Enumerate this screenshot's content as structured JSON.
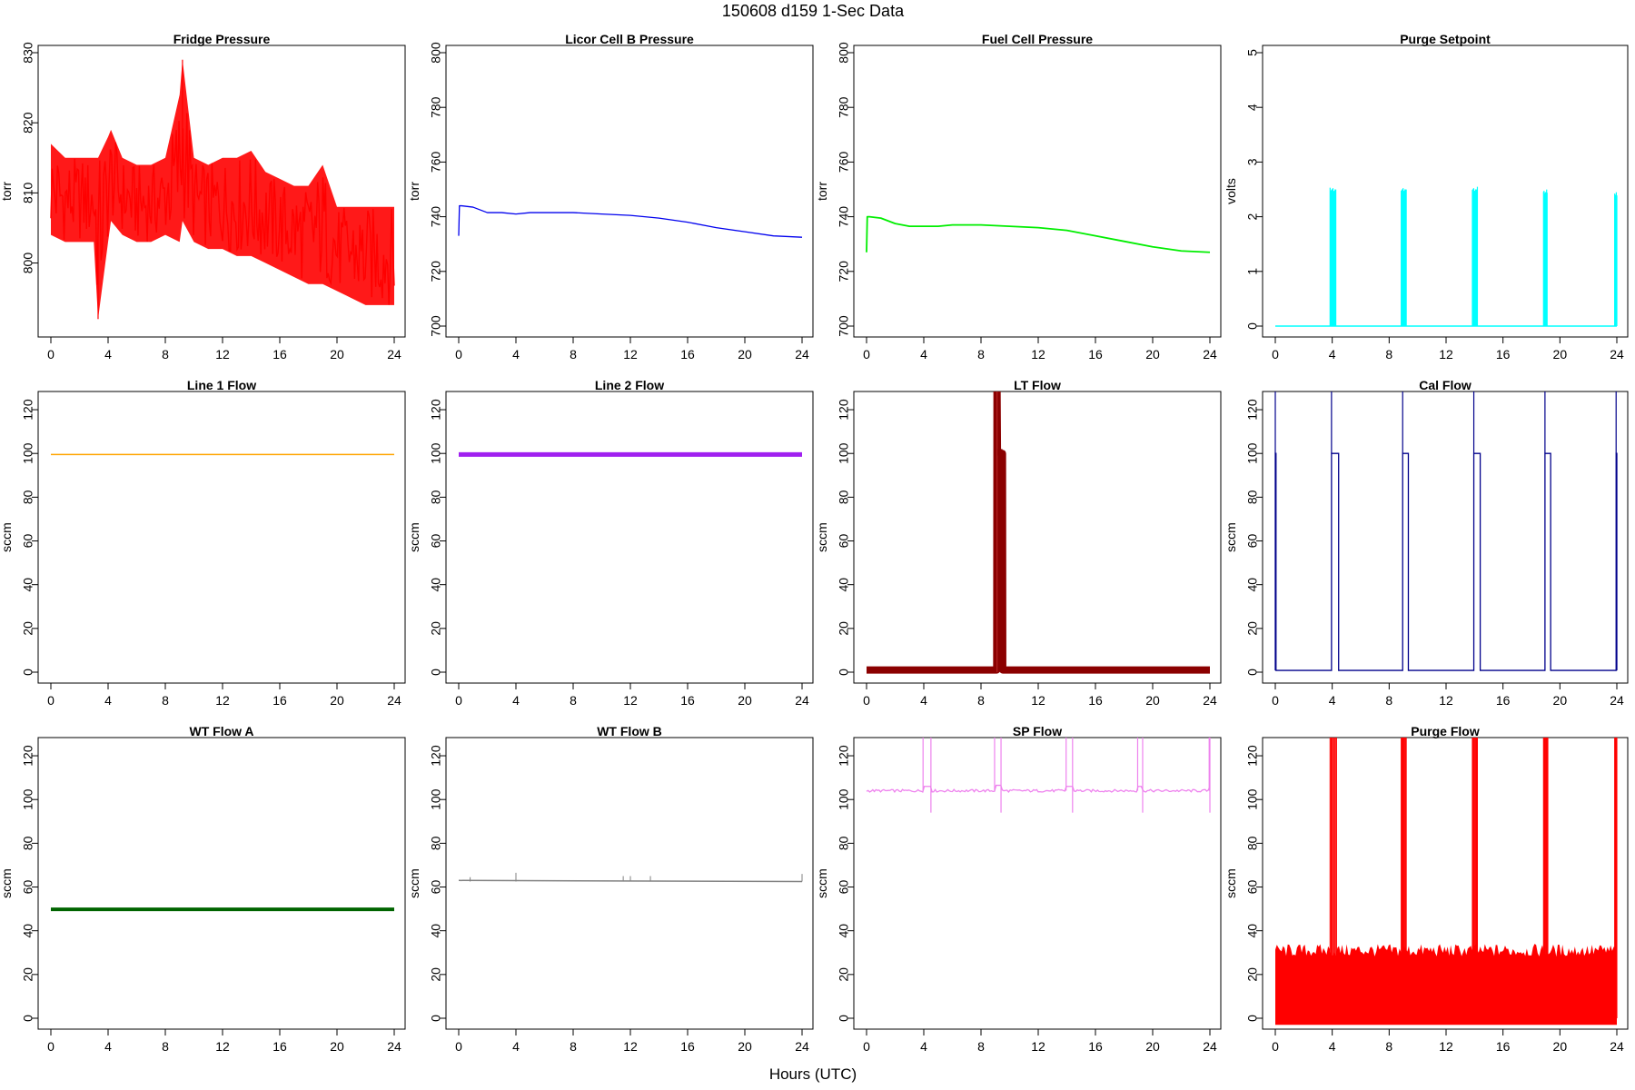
{
  "figure": {
    "title": "150608   d159   1-Sec Data",
    "xlabel": "Hours (UTC)"
  },
  "chart_data": [
    {
      "type": "line",
      "title": "Fridge Pressure",
      "ylabel": "torr",
      "color": "#ff0000",
      "xlim": [
        0,
        24
      ],
      "ylim": [
        791,
        830
      ],
      "xticks": [
        0,
        4,
        8,
        12,
        16,
        20,
        24
      ],
      "yticks": [
        800,
        810,
        820,
        830
      ],
      "series": [
        {
          "x": [
            0,
            1,
            2,
            3,
            3.3,
            4,
            4.2,
            5,
            6,
            7,
            8,
            9,
            9.2,
            10,
            11,
            12,
            13,
            14,
            15,
            16,
            17,
            18,
            19,
            20,
            21,
            22,
            23,
            24
          ],
          "low": [
            804,
            803,
            803,
            803,
            792,
            803,
            806,
            804,
            803,
            803,
            804,
            803,
            806,
            803,
            802,
            802,
            801,
            801,
            800,
            799,
            798,
            797,
            797,
            796,
            795,
            794,
            794,
            794
          ],
          "high": [
            817,
            815,
            815,
            815,
            815,
            818,
            819,
            815,
            814,
            814,
            815,
            824,
            829,
            815,
            814,
            815,
            815,
            816,
            813,
            812,
            811,
            811,
            814,
            808,
            808,
            808,
            808,
            808
          ]
        }
      ]
    },
    {
      "type": "line",
      "title": "Licor Cell B Pressure",
      "ylabel": "torr",
      "color": "#0000ee",
      "xlim": [
        0,
        24
      ],
      "ylim": [
        700,
        800
      ],
      "xticks": [
        0,
        4,
        8,
        12,
        16,
        20,
        24
      ],
      "yticks": [
        700,
        720,
        740,
        760,
        780,
        800
      ],
      "series": [
        {
          "x": [
            0,
            0.05,
            0.2,
            1,
            2,
            3,
            4,
            5,
            6,
            8,
            10,
            12,
            14,
            16,
            18,
            20,
            22,
            24
          ],
          "y": [
            733,
            744,
            744,
            743.5,
            741.5,
            741.5,
            741,
            741.5,
            741.5,
            741.5,
            741,
            740.5,
            739.5,
            738,
            736,
            734.5,
            733,
            732.5
          ]
        }
      ]
    },
    {
      "type": "line",
      "title": "Fuel Cell Pressure",
      "ylabel": "torr",
      "color": "#00ee00",
      "xlim": [
        0,
        24
      ],
      "ylim": [
        700,
        800
      ],
      "xticks": [
        0,
        4,
        8,
        12,
        16,
        20,
        24
      ],
      "yticks": [
        700,
        720,
        740,
        760,
        780,
        800
      ],
      "series": [
        {
          "x": [
            0,
            0.05,
            0.2,
            1,
            2,
            3,
            4,
            5,
            6,
            8,
            10,
            12,
            14,
            16,
            18,
            20,
            22,
            24
          ],
          "y": [
            727,
            740,
            740,
            739.5,
            737.5,
            736.5,
            736.5,
            736.5,
            737,
            737,
            736.5,
            736,
            735,
            733,
            731,
            729,
            727.5,
            727
          ]
        }
      ]
    },
    {
      "type": "line",
      "title": "Purge Setpoint",
      "ylabel": "volts",
      "color": "#00ffff",
      "xlim": [
        0,
        24
      ],
      "ylim": [
        0,
        5
      ],
      "xticks": [
        0,
        4,
        8,
        12,
        16,
        20,
        24
      ],
      "yticks": [
        0,
        1,
        2,
        3,
        4,
        5
      ],
      "baseline": 0,
      "spikes": [
        {
          "start": 3.85,
          "end": 4.25,
          "value": 2.55
        },
        {
          "start": 8.85,
          "end": 9.2,
          "value": 2.55
        },
        {
          "start": 13.85,
          "end": 14.2,
          "value": 2.55
        },
        {
          "start": 18.85,
          "end": 19.1,
          "value": 2.5
        },
        {
          "start": 23.85,
          "end": 24.0,
          "value": 2.45
        }
      ]
    },
    {
      "type": "line",
      "title": "Line 1 Flow",
      "ylabel": "sccm",
      "color": "#ffa500",
      "xlim": [
        0,
        24
      ],
      "ylim": [
        0,
        125
      ],
      "xticks": [
        0,
        4,
        8,
        12,
        16,
        20,
        24
      ],
      "yticks": [
        0,
        20,
        40,
        60,
        80,
        100,
        120
      ],
      "series": [
        {
          "x": [
            0,
            24
          ],
          "y": [
            99.5,
            99.5
          ]
        }
      ]
    },
    {
      "type": "line",
      "title": "Line 2 Flow",
      "ylabel": "sccm",
      "color": "#a020f0",
      "xlim": [
        0,
        24
      ],
      "ylim": [
        0,
        125
      ],
      "xticks": [
        0,
        4,
        8,
        12,
        16,
        20,
        24
      ],
      "yticks": [
        0,
        20,
        40,
        60,
        80,
        100,
        120
      ],
      "series": [
        {
          "x": [
            0,
            24
          ],
          "y": [
            99.5,
            99.5
          ]
        }
      ]
    },
    {
      "type": "line",
      "title": "LT Flow",
      "ylabel": "sccm",
      "color": "#8b0000",
      "xlim": [
        0,
        24
      ],
      "ylim": [
        0,
        125
      ],
      "xticks": [
        0,
        4,
        8,
        12,
        16,
        20,
        24
      ],
      "yticks": [
        0,
        20,
        40,
        60,
        80,
        100,
        120
      ],
      "series": [
        {
          "x": [
            0,
            9.1,
            9.12,
            9.15,
            9.5,
            9.52,
            24
          ],
          "y": [
            1,
            1,
            130,
            100,
            100,
            1,
            1
          ]
        }
      ]
    },
    {
      "type": "line",
      "title": "Cal Flow",
      "ylabel": "sccm",
      "color": "#00008b",
      "xlim": [
        0,
        24
      ],
      "ylim": [
        0,
        125
      ],
      "xticks": [
        0,
        4,
        8,
        12,
        16,
        20,
        24
      ],
      "yticks": [
        0,
        20,
        40,
        60,
        80,
        100,
        120
      ],
      "baseline": 0.8,
      "pulses": [
        {
          "start": 0.0,
          "end": 0.05,
          "value": 100
        },
        {
          "start": 3.95,
          "end": 4.45,
          "value": 100
        },
        {
          "start": 8.95,
          "end": 9.35,
          "value": 100
        },
        {
          "start": 13.95,
          "end": 14.4,
          "value": 100
        },
        {
          "start": 18.95,
          "end": 19.35,
          "value": 100
        },
        {
          "start": 23.95,
          "end": 24.0,
          "value": 100
        }
      ]
    },
    {
      "type": "line",
      "title": "WT Flow A",
      "ylabel": "sccm",
      "color": "#006400",
      "xlim": [
        0,
        24
      ],
      "ylim": [
        0,
        125
      ],
      "xticks": [
        0,
        4,
        8,
        12,
        16,
        20,
        24
      ],
      "yticks": [
        0,
        20,
        40,
        60,
        80,
        100,
        120
      ],
      "series": [
        {
          "x": [
            0,
            24
          ],
          "y": [
            49.8,
            49.8
          ]
        }
      ]
    },
    {
      "type": "line",
      "title": "WT Flow B",
      "ylabel": "sccm",
      "color": "#808080",
      "xlim": [
        0,
        24
      ],
      "ylim": [
        0,
        125
      ],
      "xticks": [
        0,
        4,
        8,
        12,
        16,
        20,
        24
      ],
      "yticks": [
        0,
        20,
        40,
        60,
        80,
        100,
        120
      ],
      "series": [
        {
          "x": [
            0,
            24
          ],
          "y": [
            63,
            62.5
          ]
        }
      ],
      "spikes": [
        {
          "x": 0.8,
          "value": 64.5
        },
        {
          "x": 4.0,
          "value": 66.5
        },
        {
          "x": 11.5,
          "value": 65
        },
        {
          "x": 12.0,
          "value": 65
        },
        {
          "x": 13.4,
          "value": 65
        },
        {
          "x": 24.0,
          "value": 66
        }
      ]
    },
    {
      "type": "line",
      "title": "SP Flow",
      "ylabel": "sccm",
      "color": "#ee82ee",
      "xlim": [
        0,
        24
      ],
      "ylim": [
        0,
        125
      ],
      "xticks": [
        0,
        4,
        8,
        12,
        16,
        20,
        24
      ],
      "yticks": [
        0,
        20,
        40,
        60,
        80,
        100,
        120
      ],
      "baseline": 104,
      "events": [
        {
          "start": 3.95,
          "end": 4.5,
          "value": 106
        },
        {
          "start": 8.95,
          "end": 9.4,
          "value": 106.5
        },
        {
          "start": 13.95,
          "end": 14.4,
          "value": 106
        },
        {
          "start": 18.95,
          "end": 19.3,
          "value": 106
        },
        {
          "start": 23.95,
          "end": 24.0,
          "value": 106
        }
      ]
    },
    {
      "type": "line",
      "title": "Purge Flow",
      "ylabel": "sccm",
      "color": "#ff0000",
      "xlim": [
        0,
        24
      ],
      "ylim": [
        0,
        125
      ],
      "xticks": [
        0,
        4,
        8,
        12,
        16,
        20,
        24
      ],
      "yticks": [
        0,
        20,
        40,
        60,
        80,
        100,
        120
      ],
      "bands": [
        {
          "start": 0.0,
          "end": 24.0,
          "low": -3,
          "high": 31
        }
      ],
      "spikes": [
        {
          "start": 3.85,
          "end": 4.3,
          "value": 130
        },
        {
          "start": 8.85,
          "end": 9.2,
          "value": 130
        },
        {
          "start": 13.85,
          "end": 14.2,
          "value": 130
        },
        {
          "start": 18.85,
          "end": 19.15,
          "value": 130
        },
        {
          "start": 23.85,
          "end": 24.0,
          "value": 130
        }
      ]
    }
  ]
}
